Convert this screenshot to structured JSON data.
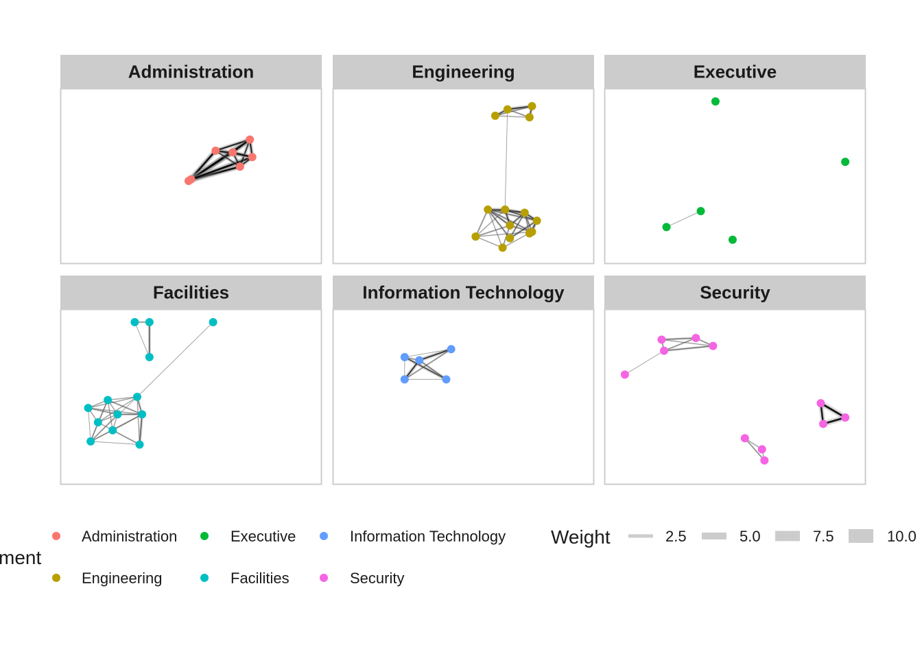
{
  "chart_data": {
    "type": "network",
    "title": "",
    "facet_by": "Department",
    "panels": [
      {
        "name": "Administration",
        "color": "#F8766D",
        "nodes": [
          [
            0.49,
            0.47
          ],
          [
            0.5,
            0.48
          ],
          [
            0.6,
            0.66
          ],
          [
            0.67,
            0.65
          ],
          [
            0.74,
            0.73
          ],
          [
            0.7,
            0.56
          ],
          [
            0.75,
            0.62
          ]
        ],
        "edges": [
          [
            0,
            2,
            9
          ],
          [
            0,
            3,
            10
          ],
          [
            0,
            4,
            10
          ],
          [
            0,
            5,
            9
          ],
          [
            0,
            6,
            10
          ],
          [
            1,
            2,
            8
          ],
          [
            1,
            3,
            9
          ],
          [
            1,
            4,
            9
          ],
          [
            1,
            5,
            8
          ],
          [
            1,
            6,
            9
          ],
          [
            2,
            3,
            7
          ],
          [
            2,
            4,
            8
          ],
          [
            3,
            4,
            8
          ],
          [
            3,
            5,
            7
          ],
          [
            4,
            5,
            7
          ],
          [
            4,
            6,
            8
          ],
          [
            5,
            6,
            7
          ],
          [
            2,
            6,
            7
          ],
          [
            3,
            6,
            8
          ],
          [
            2,
            5,
            6
          ]
        ]
      },
      {
        "name": "Engineering",
        "color": "#B79F00",
        "nodes": [
          [
            0.63,
            0.88
          ],
          [
            0.68,
            0.92
          ],
          [
            0.78,
            0.94
          ],
          [
            0.77,
            0.87
          ],
          [
            0.6,
            0.29
          ],
          [
            0.67,
            0.29
          ],
          [
            0.75,
            0.27
          ],
          [
            0.8,
            0.22
          ],
          [
            0.69,
            0.19
          ],
          [
            0.78,
            0.15
          ],
          [
            0.77,
            0.14
          ],
          [
            0.55,
            0.12
          ],
          [
            0.69,
            0.11
          ],
          [
            0.66,
            0.05
          ]
        ],
        "edges": [
          [
            0,
            1,
            6
          ],
          [
            1,
            2,
            7
          ],
          [
            0,
            3,
            2
          ],
          [
            1,
            3,
            3
          ],
          [
            2,
            3,
            6
          ],
          [
            0,
            2,
            3
          ],
          [
            1,
            5,
            1
          ],
          [
            4,
            5,
            6
          ],
          [
            4,
            6,
            5
          ],
          [
            4,
            7,
            4
          ],
          [
            4,
            8,
            5
          ],
          [
            4,
            9,
            4
          ],
          [
            5,
            6,
            6
          ],
          [
            5,
            7,
            5
          ],
          [
            5,
            8,
            6
          ],
          [
            6,
            7,
            6
          ],
          [
            6,
            8,
            5
          ],
          [
            6,
            9,
            4
          ],
          [
            7,
            9,
            5
          ],
          [
            8,
            9,
            4
          ],
          [
            11,
            4,
            3
          ],
          [
            11,
            5,
            2
          ],
          [
            11,
            8,
            3
          ],
          [
            11,
            9,
            2
          ],
          [
            11,
            13,
            2
          ],
          [
            13,
            8,
            3
          ],
          [
            13,
            9,
            2
          ],
          [
            13,
            4,
            2
          ],
          [
            12,
            4,
            4
          ],
          [
            12,
            7,
            5
          ],
          [
            12,
            6,
            4
          ],
          [
            10,
            6,
            3
          ],
          [
            10,
            7,
            4
          ]
        ]
      },
      {
        "name": "Executive",
        "color": "#00BA38",
        "nodes": [
          [
            0.42,
            0.97
          ],
          [
            0.95,
            0.59
          ],
          [
            0.36,
            0.28
          ],
          [
            0.22,
            0.18
          ],
          [
            0.49,
            0.1
          ]
        ],
        "edges": [
          [
            2,
            3,
            1
          ]
        ]
      },
      {
        "name": "Facilities",
        "color": "#00BFC4",
        "nodes": [
          [
            0.27,
            0.97
          ],
          [
            0.33,
            0.97
          ],
          [
            0.33,
            0.75
          ],
          [
            0.59,
            0.97
          ],
          [
            0.28,
            0.5
          ],
          [
            0.16,
            0.48
          ],
          [
            0.08,
            0.43
          ],
          [
            0.2,
            0.39
          ],
          [
            0.3,
            0.39
          ],
          [
            0.12,
            0.34
          ],
          [
            0.18,
            0.29
          ],
          [
            0.09,
            0.22
          ],
          [
            0.29,
            0.2
          ]
        ],
        "edges": [
          [
            0,
            1,
            3
          ],
          [
            1,
            2,
            5
          ],
          [
            0,
            2,
            1
          ],
          [
            3,
            4,
            1
          ],
          [
            4,
            8,
            4
          ],
          [
            4,
            5,
            2
          ],
          [
            4,
            6,
            2
          ],
          [
            4,
            9,
            2
          ],
          [
            5,
            6,
            2
          ],
          [
            5,
            7,
            2
          ],
          [
            5,
            8,
            3
          ],
          [
            5,
            9,
            2
          ],
          [
            5,
            10,
            2
          ],
          [
            5,
            11,
            2
          ],
          [
            6,
            7,
            3
          ],
          [
            6,
            8,
            2
          ],
          [
            6,
            9,
            2
          ],
          [
            6,
            11,
            1
          ],
          [
            7,
            8,
            4
          ],
          [
            7,
            9,
            2
          ],
          [
            7,
            10,
            2
          ],
          [
            7,
            11,
            2
          ],
          [
            8,
            10,
            3
          ],
          [
            8,
            12,
            5
          ],
          [
            9,
            10,
            2
          ],
          [
            9,
            11,
            2
          ],
          [
            10,
            11,
            2
          ],
          [
            10,
            12,
            3
          ],
          [
            11,
            12,
            1
          ],
          [
            4,
            11,
            1
          ],
          [
            4,
            12,
            2
          ],
          [
            8,
            11,
            2
          ]
        ]
      },
      {
        "name": "Information Technology",
        "color": "#619CFF",
        "nodes": [
          [
            0.26,
            0.75
          ],
          [
            0.32,
            0.73
          ],
          [
            0.45,
            0.8
          ],
          [
            0.26,
            0.61
          ],
          [
            0.43,
            0.61
          ]
        ],
        "edges": [
          [
            0,
            1,
            3
          ],
          [
            0,
            2,
            1
          ],
          [
            1,
            2,
            7
          ],
          [
            0,
            4,
            6
          ],
          [
            1,
            3,
            7
          ],
          [
            1,
            4,
            4
          ],
          [
            3,
            0,
            1
          ],
          [
            3,
            4,
            1
          ],
          [
            2,
            3,
            3
          ]
        ]
      },
      {
        "name": "Security",
        "color": "#F564E3",
        "nodes": [
          [
            0.2,
            0.86
          ],
          [
            0.34,
            0.87
          ],
          [
            0.41,
            0.82
          ],
          [
            0.21,
            0.79
          ],
          [
            0.05,
            0.64
          ],
          [
            0.85,
            0.46
          ],
          [
            0.95,
            0.37
          ],
          [
            0.86,
            0.33
          ],
          [
            0.54,
            0.24
          ],
          [
            0.61,
            0.17
          ],
          [
            0.62,
            0.1
          ]
        ],
        "edges": [
          [
            0,
            1,
            4
          ],
          [
            1,
            2,
            3
          ],
          [
            0,
            3,
            3
          ],
          [
            3,
            2,
            4
          ],
          [
            3,
            1,
            3
          ],
          [
            0,
            2,
            2
          ],
          [
            3,
            4,
            1
          ],
          [
            5,
            6,
            10
          ],
          [
            5,
            7,
            9
          ],
          [
            6,
            7,
            10
          ],
          [
            8,
            9,
            2
          ],
          [
            8,
            10,
            3
          ],
          [
            9,
            10,
            2
          ]
        ]
      }
    ],
    "legend": {
      "color_title": "Department",
      "color_title_visible": "ment",
      "color_entries": [
        {
          "label": "Administration",
          "color": "#F8766D"
        },
        {
          "label": "Engineering",
          "color": "#B79F00"
        },
        {
          "label": "Executive",
          "color": "#00BA38"
        },
        {
          "label": "Facilities",
          "color": "#00BFC4"
        },
        {
          "label": "Information Technology",
          "color": "#619CFF"
        },
        {
          "label": "Security",
          "color": "#F564E3"
        }
      ],
      "weight_title": "Weight",
      "weight_entries": [
        {
          "label": "2.5",
          "value": 2.5
        },
        {
          "label": "5.0",
          "value": 5.0
        },
        {
          "label": "7.5",
          "value": 7.5
        },
        {
          "label": "10.0",
          "value": 10.0
        }
      ],
      "placement": "bottom"
    },
    "grid": false
  }
}
